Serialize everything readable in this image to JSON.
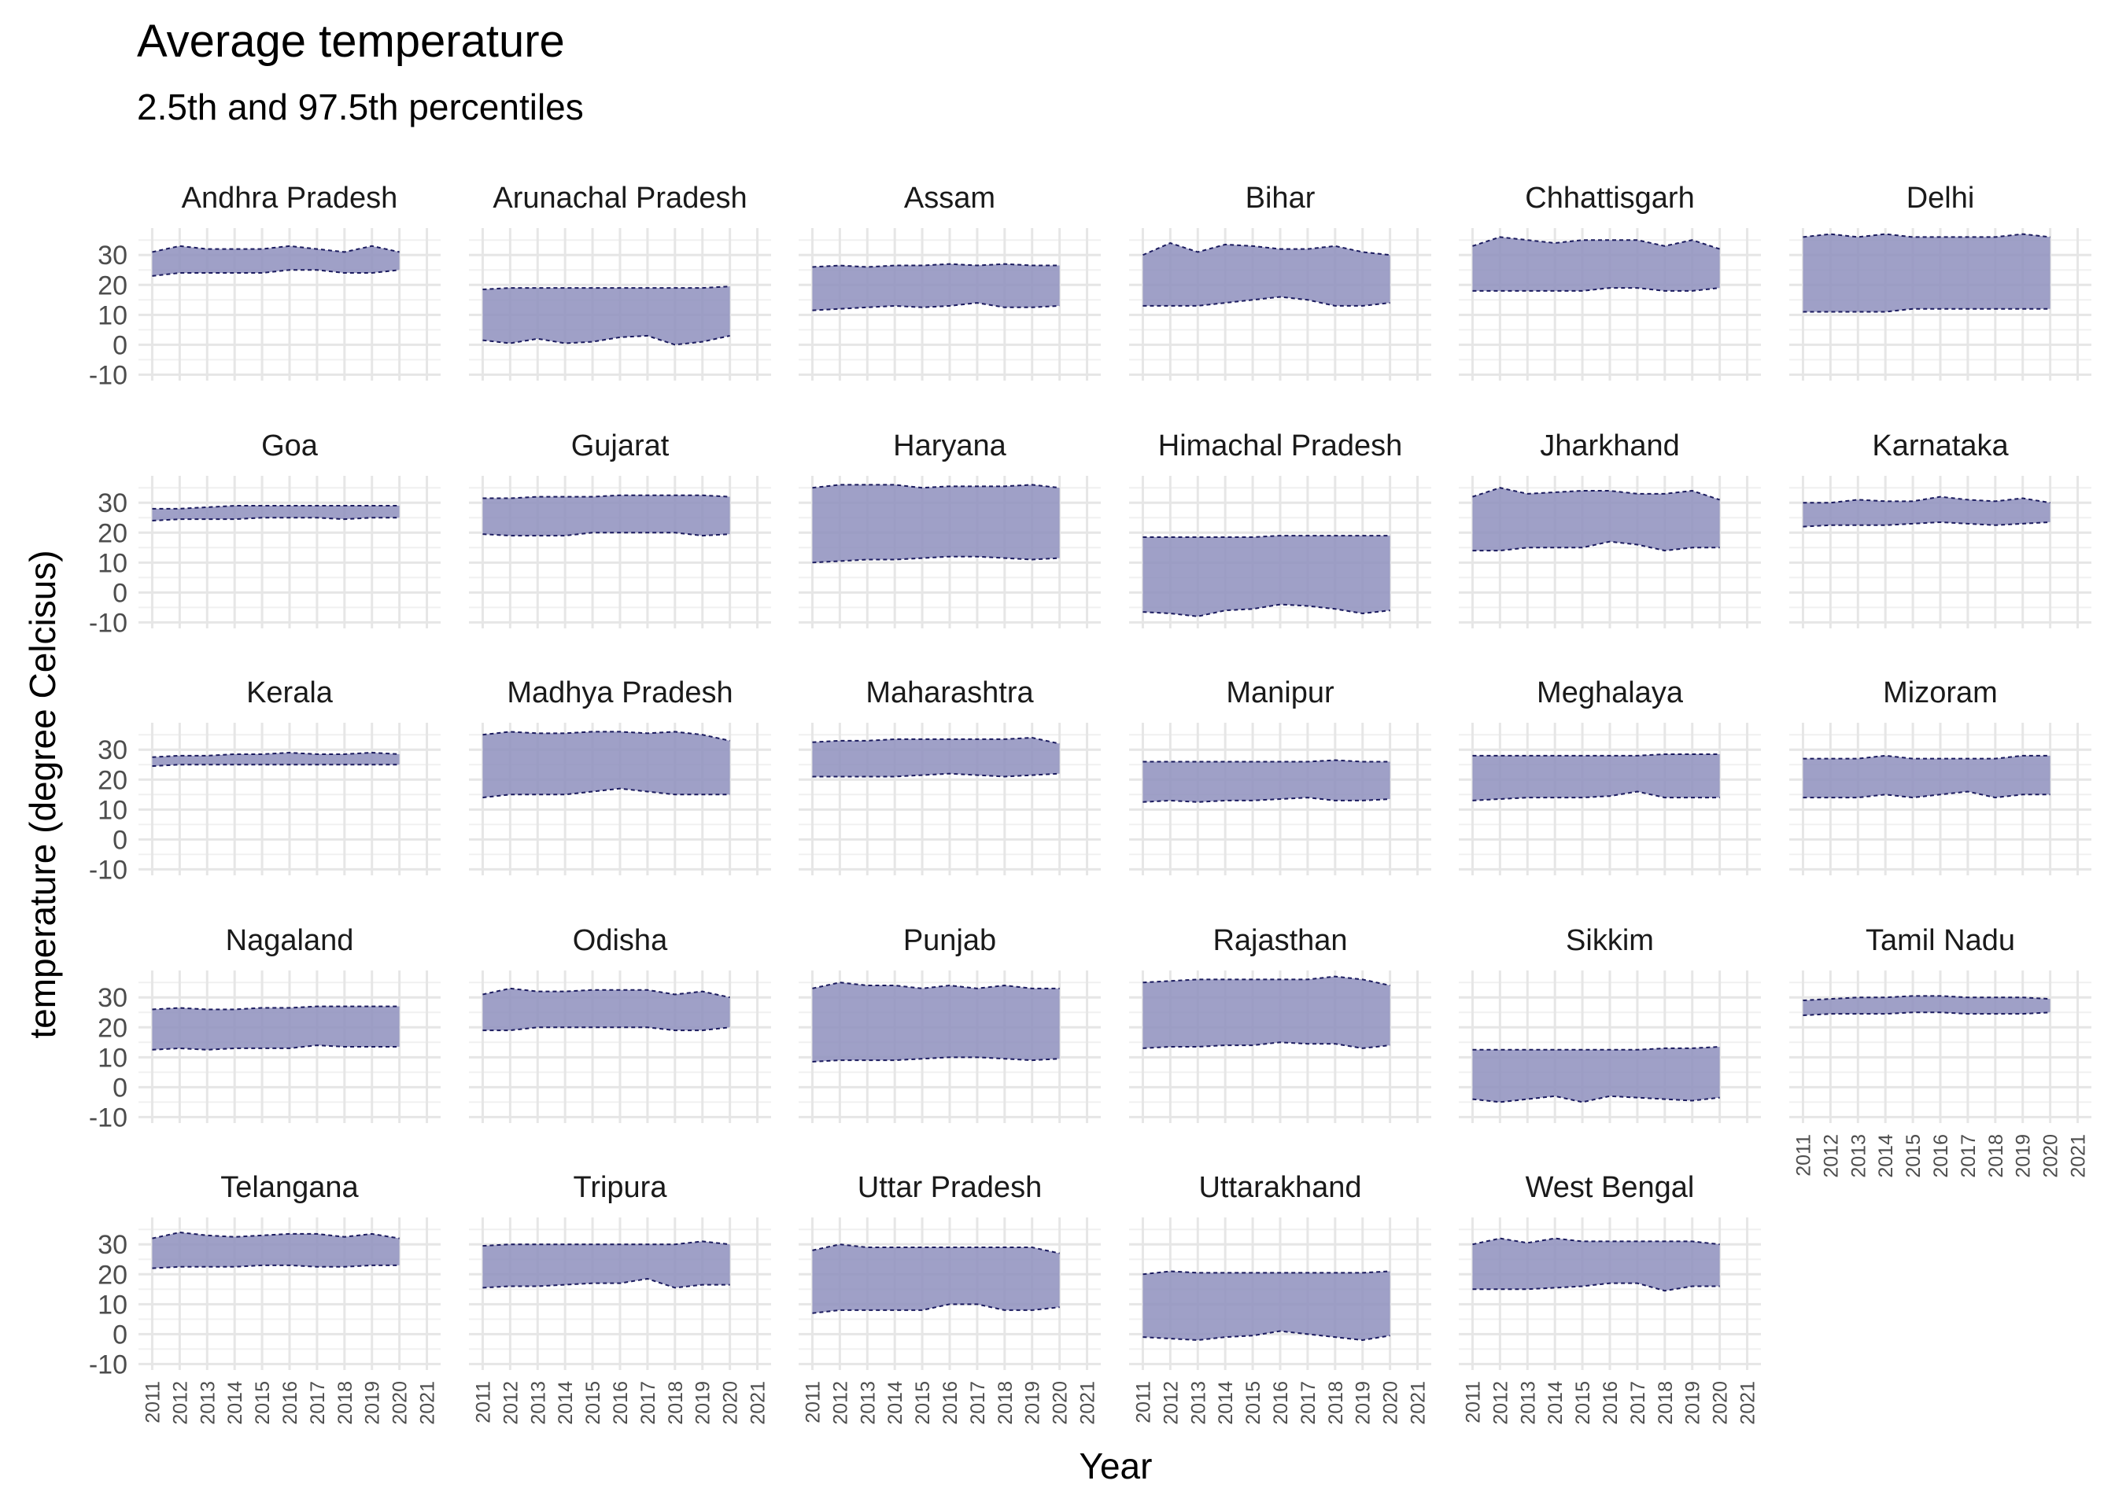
{
  "chart_data": {
    "type": "area",
    "title": "Average temperature",
    "subtitle": "2.5th and 97.5th percentiles",
    "xlabel": "Year",
    "ylabel": "temperature (degree Celcisus)",
    "x_ticks": [
      "2011",
      "2012",
      "2013",
      "2014",
      "2015",
      "2016",
      "2017",
      "2018",
      "2019",
      "2020",
      "2021"
    ],
    "y_ticks": [
      -10,
      0,
      10,
      20,
      30
    ],
    "ylim": [
      -12,
      39
    ],
    "grid": true,
    "fill_color": "#8E8FBD",
    "line_color": "#1a1a5e",
    "x": [
      2011,
      2012,
      2013,
      2014,
      2015,
      2016,
      2017,
      2018,
      2019,
      2020
    ],
    "panels": [
      {
        "name": "Andhra Pradesh",
        "upper": [
          31,
          33,
          32,
          32,
          32,
          33,
          32,
          31,
          33,
          31
        ],
        "lower": [
          23,
          24,
          24,
          24,
          24,
          25,
          25,
          24,
          24,
          25
        ]
      },
      {
        "name": "Arunachal Pradesh",
        "upper": [
          18.5,
          19,
          19,
          19,
          19,
          19,
          19,
          19,
          19,
          19.5
        ],
        "lower": [
          1.5,
          0.5,
          2,
          0.5,
          1,
          2.5,
          3,
          0,
          1,
          3
        ]
      },
      {
        "name": "Assam",
        "upper": [
          26,
          26.5,
          26,
          26.5,
          26.5,
          27,
          26.5,
          27,
          26.5,
          26.5
        ],
        "lower": [
          11.5,
          12,
          12.5,
          13,
          12.5,
          13,
          14,
          12.5,
          12.5,
          13
        ]
      },
      {
        "name": "Bihar",
        "upper": [
          30,
          34,
          31,
          33.5,
          33,
          32,
          32,
          33,
          31,
          30
        ],
        "lower": [
          13,
          13,
          13,
          14,
          15,
          16,
          15,
          13,
          13,
          14
        ]
      },
      {
        "name": "Chhattisgarh",
        "upper": [
          33,
          36,
          35,
          34,
          35,
          35,
          35,
          33,
          35,
          32
        ],
        "lower": [
          18,
          18,
          18,
          18,
          18,
          19,
          19,
          18,
          18,
          19
        ]
      },
      {
        "name": "Delhi",
        "upper": [
          36,
          37,
          36,
          37,
          36,
          36,
          36,
          36,
          37,
          36
        ],
        "lower": [
          11,
          11,
          11,
          11,
          12,
          12,
          12,
          12,
          12,
          12
        ]
      },
      {
        "name": "Goa",
        "upper": [
          28,
          28,
          28.5,
          29,
          29,
          29,
          29,
          29,
          29,
          29
        ],
        "lower": [
          24,
          24.5,
          24.5,
          24.5,
          25,
          25,
          25,
          24.5,
          25,
          25
        ]
      },
      {
        "name": "Gujarat",
        "upper": [
          31.5,
          31.5,
          32,
          32,
          32,
          32.5,
          32.5,
          32.5,
          32.5,
          32
        ],
        "lower": [
          19.5,
          19,
          19,
          19,
          20,
          20,
          20,
          20,
          19,
          19.5
        ]
      },
      {
        "name": "Haryana",
        "upper": [
          35,
          36,
          36,
          36,
          35,
          35.5,
          35.5,
          35.5,
          36,
          35
        ],
        "lower": [
          10,
          10.5,
          11,
          11,
          11.5,
          12,
          12,
          11.5,
          11,
          11.5
        ]
      },
      {
        "name": "Himachal Pradesh",
        "upper": [
          18.5,
          18.5,
          18.5,
          18.5,
          18.5,
          19,
          19,
          19,
          19,
          19
        ],
        "lower": [
          -6.5,
          -7,
          -8,
          -6,
          -5.5,
          -4,
          -4.5,
          -5.5,
          -7,
          -6
        ]
      },
      {
        "name": "Jharkhand",
        "upper": [
          32,
          35,
          33,
          33.5,
          34,
          34,
          33,
          33,
          34,
          31
        ],
        "lower": [
          14,
          14,
          15,
          15,
          15,
          17,
          16,
          14,
          15,
          15
        ]
      },
      {
        "name": "Karnataka",
        "upper": [
          30,
          30,
          31,
          30.5,
          30.5,
          32,
          31,
          30.5,
          31.5,
          30
        ],
        "lower": [
          22,
          22.5,
          22.5,
          22.5,
          23,
          23.5,
          23,
          22.5,
          23,
          23.5
        ]
      },
      {
        "name": "Kerala",
        "upper": [
          27.5,
          28,
          28,
          28.5,
          28.5,
          29,
          28.5,
          28.5,
          29,
          28.5
        ],
        "lower": [
          24.5,
          25,
          25,
          25,
          25,
          25,
          25,
          25,
          25,
          25
        ]
      },
      {
        "name": "Madhya Pradesh",
        "upper": [
          35,
          36,
          35.5,
          35.5,
          36,
          36,
          35.5,
          36,
          35,
          33
        ],
        "lower": [
          14,
          15,
          15,
          15,
          16,
          17,
          16,
          15,
          15,
          15
        ]
      },
      {
        "name": "Maharashtra",
        "upper": [
          32.5,
          33,
          33,
          33.5,
          33.5,
          33.5,
          33.5,
          33.5,
          34,
          32
        ],
        "lower": [
          21,
          21,
          21,
          21,
          21.5,
          22,
          21.5,
          21,
          21.5,
          22
        ]
      },
      {
        "name": "Manipur",
        "upper": [
          26,
          26,
          26,
          26,
          26,
          26,
          26,
          26.5,
          26,
          26
        ],
        "lower": [
          12.5,
          13,
          12.5,
          13,
          13,
          13.5,
          14,
          13,
          13,
          13.5
        ]
      },
      {
        "name": "Meghalaya",
        "upper": [
          28,
          28,
          28,
          28,
          28,
          28,
          28,
          28.5,
          28.5,
          28.5
        ],
        "lower": [
          13,
          13.5,
          14,
          14,
          14,
          14.5,
          16,
          14,
          14,
          14
        ]
      },
      {
        "name": "Mizoram",
        "upper": [
          27,
          27,
          27,
          28,
          27,
          27,
          27,
          27,
          28,
          28
        ],
        "lower": [
          14,
          14,
          14,
          15,
          14,
          15,
          16,
          14,
          15,
          15
        ]
      },
      {
        "name": "Nagaland",
        "upper": [
          26,
          26.5,
          26,
          26,
          26.5,
          26.5,
          27,
          27,
          27,
          27
        ],
        "lower": [
          12.5,
          13,
          12.5,
          13,
          13,
          13,
          14,
          13.5,
          13.5,
          13.5
        ]
      },
      {
        "name": "Odisha",
        "upper": [
          31,
          33,
          32,
          32,
          32.5,
          32.5,
          32.5,
          31,
          32,
          30
        ],
        "lower": [
          19,
          19,
          20,
          20,
          20,
          20,
          20,
          19,
          19,
          20
        ]
      },
      {
        "name": "Punjab",
        "upper": [
          33,
          35,
          34,
          34,
          33,
          34,
          33,
          34,
          33,
          33
        ],
        "lower": [
          8.5,
          9,
          9,
          9,
          9.5,
          10,
          10,
          9.5,
          9,
          9.5
        ]
      },
      {
        "name": "Rajasthan",
        "upper": [
          35,
          35.5,
          36,
          36,
          36,
          36,
          36,
          37,
          36,
          34
        ],
        "lower": [
          13,
          13.5,
          13.5,
          14,
          14,
          15,
          14.5,
          14.5,
          13,
          14
        ]
      },
      {
        "name": "Sikkim",
        "upper": [
          12.5,
          12.5,
          12.5,
          12.5,
          12.5,
          12.5,
          12.5,
          13,
          13,
          13.5
        ],
        "lower": [
          -4,
          -5,
          -4,
          -3,
          -5,
          -3,
          -3.5,
          -4,
          -4.5,
          -3.5
        ]
      },
      {
        "name": "Tamil Nadu",
        "upper": [
          29,
          29.5,
          30,
          30,
          30.5,
          30.5,
          30,
          30,
          30,
          29.5
        ],
        "lower": [
          24,
          24.5,
          24.5,
          24.5,
          25,
          25,
          24.5,
          24.5,
          24.5,
          25
        ]
      },
      {
        "name": "Telangana",
        "upper": [
          32,
          34,
          33,
          32.5,
          33,
          33.5,
          33.5,
          32.5,
          33.5,
          32
        ],
        "lower": [
          22,
          22.5,
          22.5,
          22.5,
          23,
          23,
          22.5,
          22.5,
          23,
          23
        ]
      },
      {
        "name": "Tripura",
        "upper": [
          29.5,
          30,
          30,
          30,
          30,
          30,
          30,
          30,
          31,
          30
        ],
        "lower": [
          15.5,
          16,
          16,
          16.5,
          17,
          17,
          18.5,
          15.5,
          16.5,
          16.5
        ]
      },
      {
        "name": "Uttar Pradesh",
        "upper": [
          28,
          30,
          29,
          29,
          29,
          29,
          29,
          29,
          29,
          27
        ],
        "lower": [
          7,
          8,
          8,
          8,
          8,
          10,
          10,
          8,
          8,
          9
        ]
      },
      {
        "name": "Uttarakhand",
        "upper": [
          20,
          21,
          20.5,
          20.5,
          20.5,
          20.5,
          20.5,
          20.5,
          20.5,
          21
        ],
        "lower": [
          -1,
          -1.5,
          -2,
          -1,
          -0.5,
          1,
          0,
          -1,
          -2,
          -0.5
        ]
      },
      {
        "name": "West Bengal",
        "upper": [
          30,
          32,
          30.5,
          32,
          31,
          31,
          31,
          31,
          31,
          30
        ],
        "lower": [
          15,
          15,
          15,
          15.5,
          16,
          17,
          17,
          14.5,
          16,
          16
        ]
      }
    ]
  }
}
